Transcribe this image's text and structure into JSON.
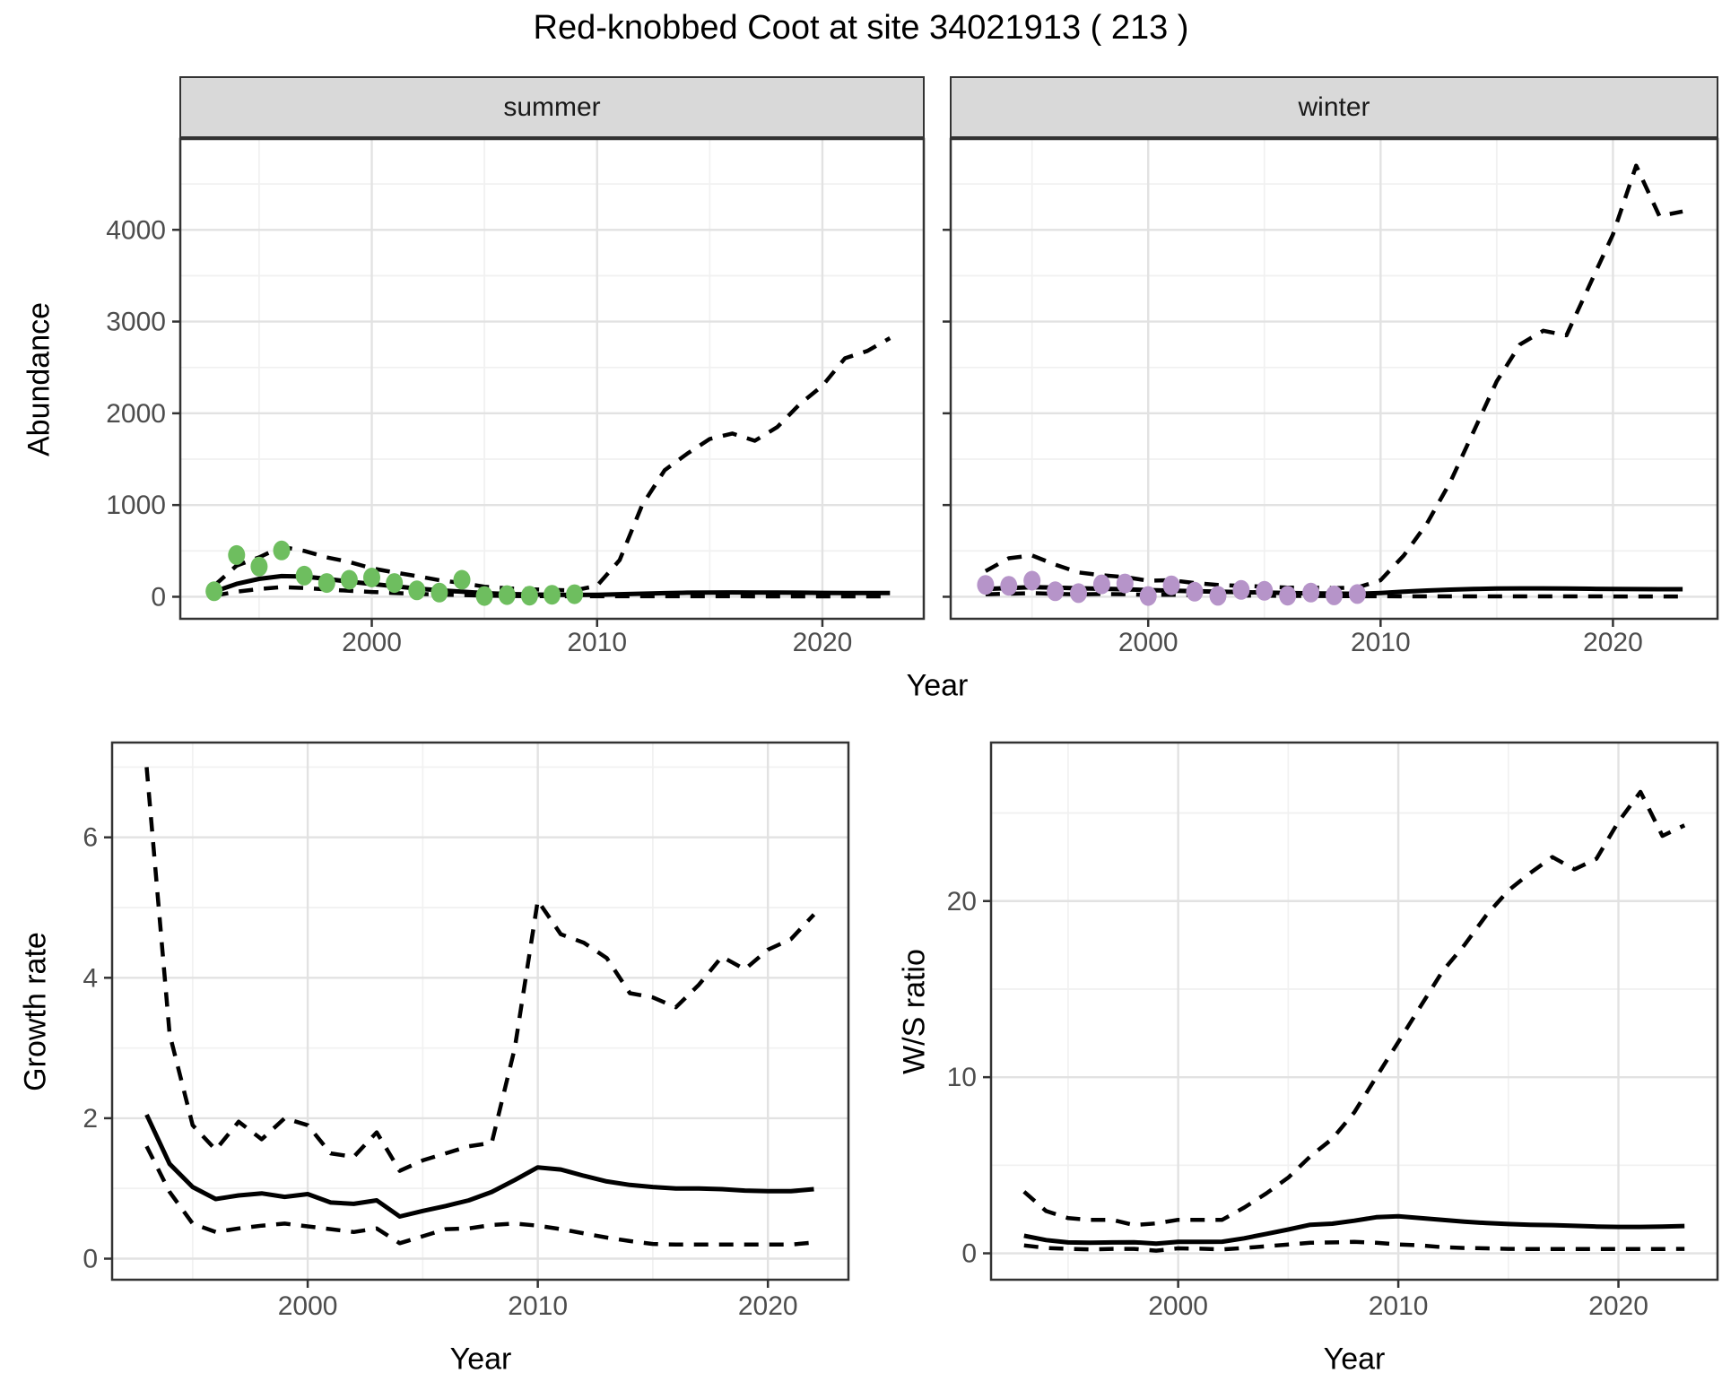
{
  "title": "Red-knobbed Coot at site 34021913 ( 213 )",
  "colors": {
    "summer_points": "#6EBE5F",
    "winter_points": "#B694C9",
    "line": "#000000",
    "grid_major": "#e2e2e2",
    "grid_minor": "#f1f1f1",
    "strip_bg": "#d9d9d9",
    "panel_border": "#333333",
    "tick_label": "#4d4d4d",
    "title_text": "#000000"
  },
  "chart_data": [
    {
      "id": "abundance-summer",
      "type": "line",
      "facet_label": "summer",
      "xlabel": "Year",
      "ylabel": "Abundance",
      "xlim": [
        1991.5,
        2024.5
      ],
      "ylim": [
        -240,
        4990
      ],
      "x_ticks": [
        2000,
        2010,
        2020
      ],
      "x_minor_ticks": [
        1995,
        2005,
        2015
      ],
      "y_ticks": [
        0,
        1000,
        2000,
        3000,
        4000
      ],
      "y_minor_ticks": [
        500,
        1500,
        2500,
        3500,
        4500
      ],
      "grid": true,
      "legend": "none",
      "years": [
        1993,
        1994,
        1995,
        1996,
        1997,
        1998,
        1999,
        2000,
        2001,
        2002,
        2003,
        2004,
        2005,
        2006,
        2007,
        2008,
        2009,
        2010,
        2011,
        2012,
        2013,
        2014,
        2015,
        2016,
        2017,
        2018,
        2019,
        2020,
        2021,
        2022,
        2023
      ],
      "series": [
        {
          "name": "upper_ci",
          "style": "dashed",
          "values": [
            120,
            340,
            430,
            545,
            500,
            430,
            380,
            310,
            265,
            225,
            180,
            150,
            110,
            92,
            82,
            75,
            70,
            120,
            400,
            1000,
            1380,
            1560,
            1720,
            1780,
            1700,
            1850,
            2100,
            2300,
            2600,
            2680,
            2820
          ]
        },
        {
          "name": "mean",
          "style": "solid",
          "values": [
            55,
            140,
            195,
            225,
            220,
            195,
            165,
            140,
            115,
            90,
            70,
            55,
            40,
            30,
            25,
            22,
            20,
            22,
            28,
            34,
            40,
            44,
            46,
            47,
            46,
            45,
            44,
            43,
            42,
            42,
            42
          ]
        },
        {
          "name": "lower_ci",
          "style": "dashed",
          "values": [
            12,
            55,
            85,
            105,
            95,
            80,
            65,
            52,
            42,
            32,
            24,
            18,
            12,
            9,
            7,
            6,
            5,
            5,
            5,
            5,
            5,
            5,
            5,
            5,
            4,
            4,
            4,
            4,
            4,
            4,
            4
          ]
        }
      ],
      "points": {
        "name": "observed-counts",
        "color": "#6EBE5F",
        "years": [
          1993,
          1994,
          1995,
          1996,
          1997,
          1998,
          1999,
          2000,
          2001,
          2002,
          2003,
          2004,
          2005,
          2006,
          2007,
          2008,
          2009
        ],
        "values": [
          60,
          455,
          330,
          505,
          230,
          150,
          185,
          210,
          150,
          70,
          45,
          185,
          8,
          18,
          12,
          22,
          28
        ]
      }
    },
    {
      "id": "abundance-winter",
      "type": "line",
      "facet_label": "winter",
      "xlabel": "Year",
      "ylabel": "Abundance",
      "xlim": [
        1991.5,
        2024.5
      ],
      "ylim": [
        -240,
        4990
      ],
      "x_ticks": [
        2000,
        2010,
        2020
      ],
      "x_minor_ticks": [
        1995,
        2005,
        2015
      ],
      "y_ticks": [
        0,
        1000,
        2000,
        3000,
        4000
      ],
      "y_minor_ticks": [
        500,
        1500,
        2500,
        3500,
        4500
      ],
      "grid": true,
      "legend": "none",
      "years": [
        1993,
        1994,
        1995,
        1996,
        1997,
        1998,
        1999,
        2000,
        2001,
        2002,
        2003,
        2004,
        2005,
        2006,
        2007,
        2008,
        2009,
        2010,
        2011,
        2012,
        2013,
        2014,
        2015,
        2016,
        2017,
        2018,
        2019,
        2020,
        2021,
        2022,
        2023
      ],
      "series": [
        {
          "name": "upper_ci",
          "style": "dashed",
          "values": [
            280,
            420,
            450,
            350,
            265,
            235,
            215,
            175,
            180,
            150,
            130,
            120,
            110,
            100,
            100,
            95,
            100,
            180,
            450,
            800,
            1250,
            1800,
            2350,
            2750,
            2900,
            2850,
            3400,
            3950,
            4700,
            4150,
            4200
          ]
        },
        {
          "name": "mean",
          "style": "solid",
          "values": [
            85,
            95,
            105,
            100,
            92,
            87,
            82,
            73,
            67,
            60,
            55,
            50,
            45,
            41,
            38,
            35,
            33,
            42,
            55,
            68,
            78,
            85,
            89,
            91,
            91,
            89,
            87,
            85,
            84,
            83,
            83
          ]
        },
        {
          "name": "lower_ci",
          "style": "dashed",
          "values": [
            26,
            34,
            40,
            32,
            27,
            30,
            28,
            20,
            22,
            18,
            14,
            13,
            11,
            9,
            8,
            7,
            6,
            5,
            4,
            4,
            4,
            4,
            4,
            4,
            4,
            4,
            4,
            3,
            3,
            3,
            3
          ]
        }
      ],
      "points": {
        "name": "observed-counts",
        "color": "#B694C9",
        "years": [
          1993,
          1994,
          1995,
          1996,
          1997,
          1998,
          1999,
          2000,
          2001,
          2002,
          2003,
          2004,
          2005,
          2006,
          2007,
          2008,
          2009
        ],
        "values": [
          130,
          120,
          175,
          60,
          40,
          135,
          145,
          8,
          125,
          55,
          10,
          75,
          65,
          12,
          45,
          15,
          30
        ]
      }
    },
    {
      "id": "growth-rate",
      "type": "line",
      "facet_label": "",
      "xlabel": "Year",
      "ylabel": "Growth rate",
      "xlim": [
        1991.5,
        2023.5
      ],
      "ylim": [
        -0.3,
        7.35
      ],
      "x_ticks": [
        2000,
        2010,
        2020
      ],
      "x_minor_ticks": [
        1995,
        2005,
        2015
      ],
      "y_ticks": [
        0,
        2,
        4,
        6
      ],
      "y_minor_ticks": [
        1,
        3,
        5,
        7
      ],
      "grid": true,
      "legend": "none",
      "years": [
        1993,
        1994,
        1995,
        1996,
        1997,
        1998,
        1999,
        2000,
        2001,
        2002,
        2003,
        2004,
        2005,
        2006,
        2007,
        2008,
        2009,
        2010,
        2011,
        2012,
        2013,
        2014,
        2015,
        2016,
        2017,
        2018,
        2019,
        2020,
        2021,
        2022
      ],
      "series": [
        {
          "name": "upper_ci",
          "style": "dashed",
          "values": [
            7.0,
            3.2,
            1.9,
            1.55,
            1.95,
            1.7,
            2.0,
            1.9,
            1.5,
            1.45,
            1.8,
            1.25,
            1.4,
            1.5,
            1.6,
            1.65,
            3.0,
            5.1,
            4.62,
            4.5,
            4.28,
            3.78,
            3.72,
            3.58,
            3.9,
            4.3,
            4.12,
            4.4,
            4.55,
            4.9
          ]
        },
        {
          "name": "mean",
          "style": "solid",
          "values": [
            2.05,
            1.35,
            1.02,
            0.85,
            0.9,
            0.93,
            0.88,
            0.92,
            0.8,
            0.78,
            0.83,
            0.6,
            0.68,
            0.75,
            0.83,
            0.95,
            1.12,
            1.3,
            1.27,
            1.18,
            1.1,
            1.05,
            1.02,
            1.0,
            1.0,
            0.99,
            0.97,
            0.96,
            0.96,
            0.99
          ]
        },
        {
          "name": "lower_ci",
          "style": "dashed",
          "values": [
            1.6,
            0.95,
            0.5,
            0.38,
            0.43,
            0.47,
            0.5,
            0.46,
            0.42,
            0.38,
            0.43,
            0.22,
            0.32,
            0.42,
            0.43,
            0.48,
            0.5,
            0.47,
            0.42,
            0.36,
            0.3,
            0.25,
            0.21,
            0.2,
            0.2,
            0.2,
            0.2,
            0.2,
            0.2,
            0.23
          ]
        }
      ]
    },
    {
      "id": "ws-ratio",
      "type": "line",
      "facet_label": "",
      "xlabel": "Year",
      "ylabel": "W/S ratio",
      "xlim": [
        1991.5,
        2024.5
      ],
      "ylim": [
        -1.5,
        29
      ],
      "x_ticks": [
        2000,
        2010,
        2020
      ],
      "x_minor_ticks": [
        1995,
        2005,
        2015
      ],
      "y_ticks": [
        0,
        10,
        20
      ],
      "y_minor_ticks": [
        5,
        15,
        25
      ],
      "grid": true,
      "legend": "none",
      "years": [
        1993,
        1994,
        1995,
        1996,
        1997,
        1998,
        1999,
        2000,
        2001,
        2002,
        2003,
        2004,
        2005,
        2006,
        2007,
        2008,
        2009,
        2010,
        2011,
        2012,
        2013,
        2014,
        2015,
        2016,
        2017,
        2018,
        2019,
        2020,
        2021,
        2022,
        2023
      ],
      "series": [
        {
          "name": "upper_ci",
          "style": "dashed",
          "values": [
            3.5,
            2.4,
            2.0,
            1.9,
            1.9,
            1.6,
            1.7,
            1.9,
            1.9,
            1.9,
            2.6,
            3.4,
            4.3,
            5.5,
            6.5,
            8.0,
            10.0,
            12.0,
            14.0,
            16.0,
            17.5,
            19.2,
            20.6,
            21.6,
            22.5,
            21.8,
            22.4,
            24.5,
            26.2,
            23.7,
            24.3
          ]
        },
        {
          "name": "mean",
          "style": "solid",
          "values": [
            1.0,
            0.75,
            0.62,
            0.6,
            0.62,
            0.63,
            0.55,
            0.65,
            0.65,
            0.66,
            0.85,
            1.1,
            1.35,
            1.62,
            1.68,
            1.85,
            2.05,
            2.1,
            2.0,
            1.9,
            1.8,
            1.72,
            1.66,
            1.62,
            1.6,
            1.56,
            1.52,
            1.5,
            1.5,
            1.52,
            1.55
          ]
        },
        {
          "name": "lower_ci",
          "style": "dashed",
          "values": [
            0.45,
            0.3,
            0.25,
            0.22,
            0.25,
            0.25,
            0.15,
            0.28,
            0.26,
            0.22,
            0.3,
            0.4,
            0.5,
            0.6,
            0.62,
            0.65,
            0.6,
            0.5,
            0.45,
            0.35,
            0.3,
            0.28,
            0.25,
            0.24,
            0.24,
            0.24,
            0.24,
            0.24,
            0.24,
            0.24,
            0.25
          ]
        }
      ]
    }
  ]
}
